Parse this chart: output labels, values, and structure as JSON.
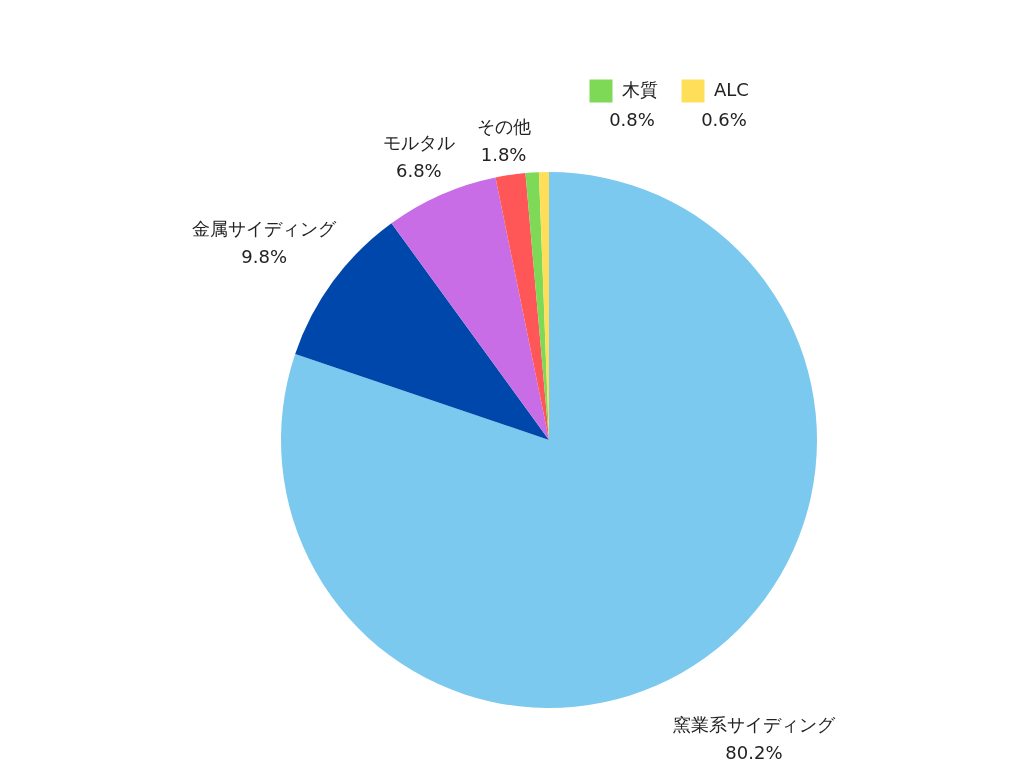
{
  "chart_data": {
    "type": "pie",
    "categories": [
      "窯業系サイディング",
      "金属サイディング",
      "モルタル",
      "その他",
      "木質",
      "ALC"
    ],
    "values": [
      80.2,
      9.8,
      6.8,
      1.8,
      0.8,
      0.6
    ],
    "value_labels": [
      "80.2%",
      "9.8%",
      "6.8%",
      "1.8%",
      "0.8%",
      "0.6%"
    ],
    "colors": [
      "#7cc9ef",
      "#0047ab",
      "#c86de6",
      "#ff5757",
      "#7ed957",
      "#ffde59"
    ],
    "legend": "top right"
  }
}
